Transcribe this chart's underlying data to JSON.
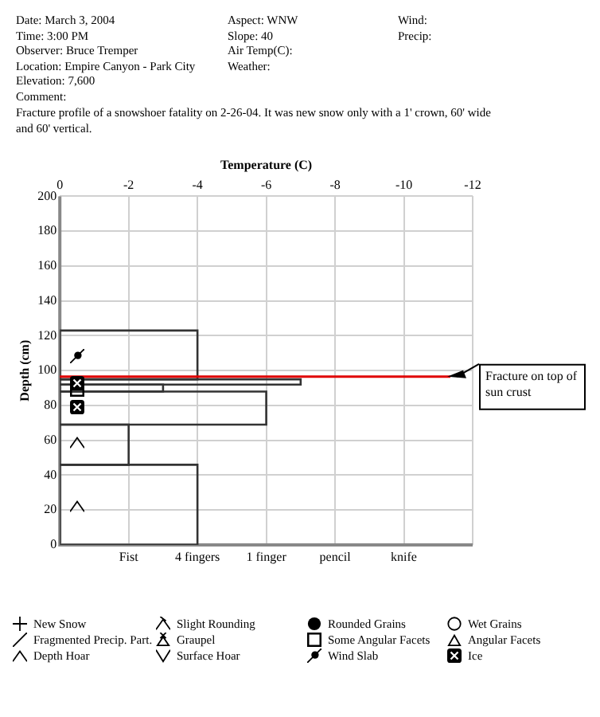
{
  "chart_data": {
    "type": "histogram",
    "orientation": "horizontal",
    "annotations": [
      "Date:   March 3, 2004",
      "Aspect:   WNW",
      "Wind:",
      "Time:   3:00 PM",
      "Slope:   40",
      "Precip:",
      "Observer:   Bruce Tremper",
      "Air Temp(C):",
      "Location:   Empire Canyon - Park City",
      "Weather:",
      "Elevation:   7,600",
      "Comment:",
      "Fracture profile of a snowshoer fatality on 2-26-04. It was new snow only with a 1' crown, 60' wide and 60' vertical.",
      "New Snow",
      "Fragmented Precip. Part.",
      "Depth Hoar",
      "Slight Rounding",
      "Graupel",
      "Surface Hoar",
      "Rounded Grains",
      "Some Angular Facets",
      "Wind Slab",
      "Wet Grains",
      "Angular Facets",
      "Ice",
      "Fist",
      "4 fingers",
      "1 finger",
      "pencil",
      "knife"
    ],
    "bins": [
      0,
      46,
      69,
      88,
      92,
      95,
      123
    ],
    "values": [
      -4,
      -2,
      -6,
      -3,
      -7,
      -4
    ],
    "color": "#333333",
    "ylabel": "Depth (cm)",
    "xlabel": "Temperature (C)",
    "ylim": [
      0,
      200
    ],
    "yticks": [
      0,
      20,
      40,
      60,
      80,
      100,
      120,
      140,
      160,
      180,
      200
    ],
    "xlim": [
      0,
      -12
    ],
    "xticks": [
      0,
      -2,
      -4,
      -6,
      -8,
      -10,
      -12
    ],
    "ref_lines": [
      {
        "axis": "y",
        "value": 96.5,
        "label": "Fracture on top of sun crust",
        "color": "#e00000"
      }
    ],
    "grid": true,
    "legend": false
  }
}
